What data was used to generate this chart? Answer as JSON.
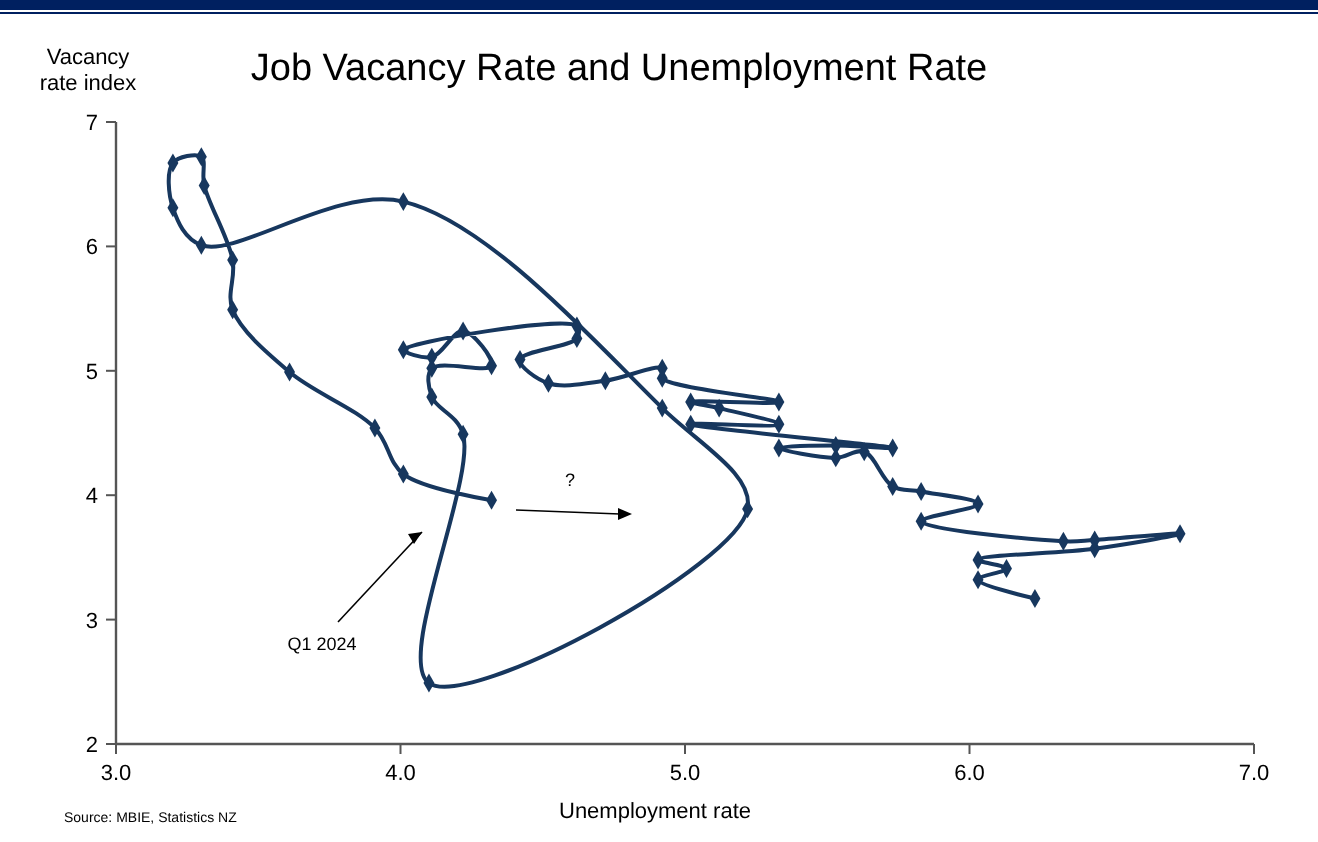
{
  "chart_data": {
    "type": "line",
    "title": "Job Vacancy Rate and Unemployment Rate",
    "xlabel": "Unemployment rate",
    "ylabel": "Vacancy rate index",
    "annotations": [
      "Q1 2024",
      "?",
      "Source: MBIE, Statistics NZ"
    ],
    "series": [
      {
        "color": "#17375e",
        "x": [
          6.23,
          6.03,
          6.13,
          6.03,
          6.44,
          6.74,
          6.44,
          6.33,
          5.83,
          6.03,
          5.83,
          5.73,
          5.63,
          5.53,
          5.33,
          5.53,
          5.73,
          5.02,
          5.33,
          5.12,
          5.02,
          5.33,
          4.92,
          4.92,
          4.72,
          4.52,
          4.42,
          4.62,
          4.62,
          4.01,
          4.11,
          4.22,
          4.32,
          4.11,
          4.11,
          4.22,
          4.1,
          5.22,
          4.92,
          4.01,
          3.3,
          3.2,
          3.2,
          3.3,
          3.31,
          3.41,
          3.41,
          3.61,
          3.91,
          4.01,
          4.32
        ],
        "values": [
          3.17,
          3.32,
          3.41,
          3.48,
          3.57,
          3.69,
          3.64,
          3.63,
          3.79,
          3.93,
          4.03,
          4.07,
          4.35,
          4.3,
          4.38,
          4.4,
          4.38,
          4.57,
          4.57,
          4.7,
          4.75,
          4.75,
          4.94,
          5.02,
          4.92,
          4.9,
          5.09,
          5.26,
          5.36,
          5.17,
          5.11,
          5.32,
          5.04,
          5.02,
          4.79,
          4.49,
          2.49,
          3.89,
          4.7,
          6.36,
          6.01,
          6.31,
          6.67,
          6.72,
          6.49,
          5.89,
          5.49,
          4.99,
          4.54,
          4.17,
          3.96
        ]
      }
    ],
    "xlim": [
      3,
      7
    ],
    "xticks": [
      {
        "value": 3,
        "label": "3.0"
      },
      {
        "value": 4,
        "label": "4.0"
      },
      {
        "value": 5,
        "label": "5.0"
      },
      {
        "value": 6,
        "label": "6.0"
      },
      {
        "value": 7,
        "label": "7.0"
      }
    ],
    "ylim": [
      2,
      7
    ],
    "yticks": [
      2,
      3,
      4,
      5,
      6,
      7
    ],
    "grid": false,
    "marker": "diamond",
    "line_style": "solid"
  }
}
